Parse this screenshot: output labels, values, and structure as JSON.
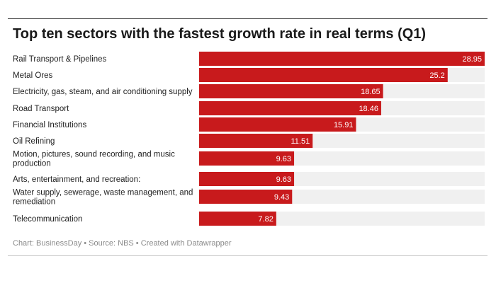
{
  "chart_data": {
    "type": "bar",
    "orientation": "horizontal",
    "title": "Top ten sectors with the fastest growth rate in real terms (Q1)",
    "categories": [
      [
        "Rail Transport & Pipelines"
      ],
      [
        "Metal Ores"
      ],
      [
        "Electricity, gas, steam, and air conditioning supply"
      ],
      [
        "Road Transport"
      ],
      [
        "Financial Institutions"
      ],
      [
        "Oil Refining"
      ],
      [
        "Motion, pictures, sound recording, and music",
        "production"
      ],
      [
        "Arts, entertainment, and recreation:"
      ],
      [
        "Water supply, sewerage, waste management, and",
        "remediation"
      ],
      [
        "Telecommunication"
      ]
    ],
    "values": [
      28.95,
      25.2,
      18.65,
      18.46,
      15.91,
      11.51,
      9.63,
      9.63,
      9.43,
      7.82
    ],
    "value_labels": [
      "28.95",
      "25.2",
      "18.65",
      "18.46",
      "15.91",
      "11.51",
      "9.63",
      "9.63",
      "9.43",
      "7.82"
    ],
    "xlim": [
      0,
      28.95
    ],
    "xlabel": "",
    "ylabel": "",
    "bar_color": "#c81a1c",
    "track_color": "#f0f0f0"
  },
  "footer": {
    "text": "Chart: BusinessDay • Source: NBS • Created with Datawrapper"
  }
}
